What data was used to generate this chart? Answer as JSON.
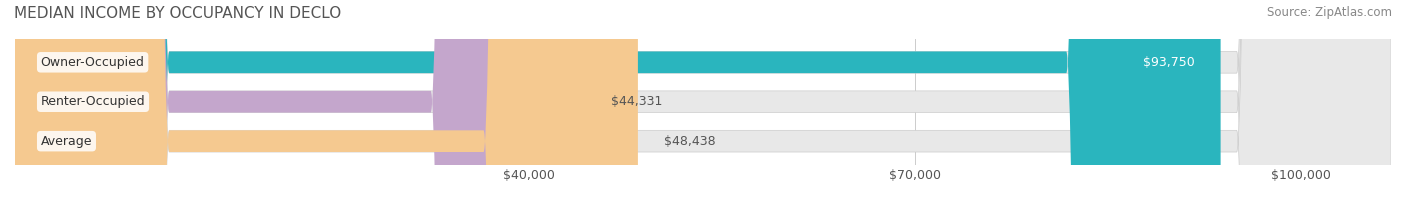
{
  "title": "MEDIAN INCOME BY OCCUPANCY IN DECLO",
  "source": "Source: ZipAtlas.com",
  "categories": [
    "Owner-Occupied",
    "Renter-Occupied",
    "Average"
  ],
  "values": [
    93750,
    44331,
    48438
  ],
  "labels": [
    "$93,750",
    "$44,331",
    "$48,438"
  ],
  "bar_colors": [
    "#2ab5be",
    "#c4a6cc",
    "#f5c990"
  ],
  "bar_bg_color": "#e8e8e8",
  "x_ticks": [
    40000,
    70000,
    100000
  ],
  "x_tick_labels": [
    "$40,000",
    "$70,000",
    "$100,000"
  ],
  "xmin": 0,
  "xmax": 107000,
  "title_fontsize": 11,
  "source_fontsize": 8.5,
  "label_fontsize": 9,
  "bar_label_fontsize": 9,
  "category_fontsize": 9,
  "bar_height": 0.55,
  "figsize": [
    14.06,
    1.97
  ],
  "dpi": 100
}
